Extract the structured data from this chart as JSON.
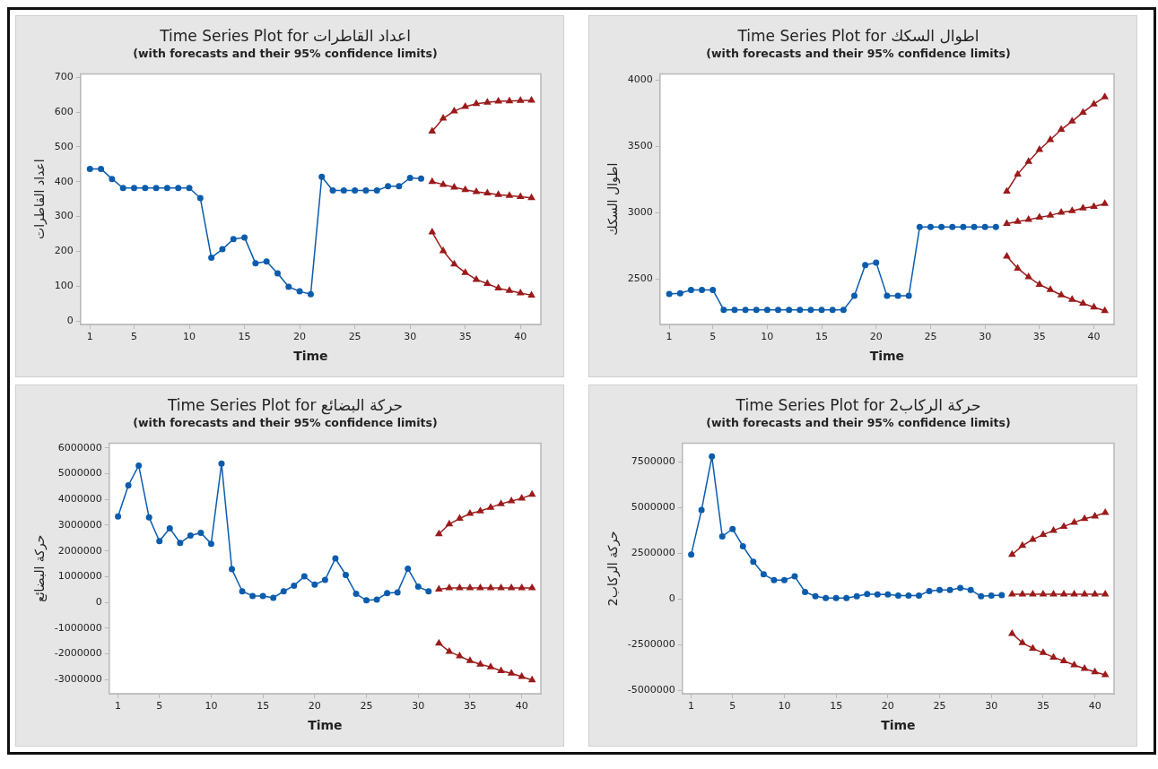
{
  "chart_data": [
    {
      "type": "line",
      "title": "Time Series Plot for اعداد القاطرات",
      "subtitle": "(with forecasts and their 95% confidence limits)",
      "xlabel": "Time",
      "ylabel": "اعداد القاطرات",
      "xlim": [
        0.15,
        41.85
      ],
      "xticks": [
        1,
        5,
        10,
        15,
        20,
        25,
        30,
        35,
        40
      ],
      "ylim": [
        -10,
        710
      ],
      "yticks": [
        0,
        100,
        200,
        300,
        400,
        500,
        600,
        700
      ],
      "grid": false,
      "legend": false,
      "series": [
        {
          "color": "#0b5cad",
          "marker": "circle",
          "x": [
            1,
            2,
            3,
            4,
            5,
            6,
            7,
            8,
            9,
            10,
            11,
            12,
            13,
            14,
            15,
            16,
            17,
            18,
            19,
            20,
            21,
            22,
            23,
            24,
            25,
            26,
            27,
            28,
            29,
            30,
            31
          ],
          "values": [
            437,
            437,
            408,
            382,
            382,
            382,
            382,
            382,
            382,
            382,
            353,
            182,
            206,
            235,
            240,
            166,
            171,
            137,
            98,
            85,
            77,
            414,
            375,
            375,
            375,
            375,
            375,
            387,
            387,
            411,
            409
          ]
        },
        {
          "color": "#9b1a1a",
          "marker": "triangle",
          "x": [
            32,
            33,
            34,
            35,
            36,
            37,
            38,
            39,
            40,
            41
          ],
          "values": [
            545,
            582,
            603,
            616,
            624,
            628,
            631,
            632,
            633,
            634
          ]
        },
        {
          "color": "#9b1a1a",
          "marker": "triangle",
          "x": [
            32,
            33,
            34,
            35,
            36,
            37,
            38,
            39,
            40,
            41
          ],
          "values": [
            400,
            392,
            384,
            377,
            371,
            367,
            363,
            360,
            357,
            354
          ]
        },
        {
          "color": "#9b1a1a",
          "marker": "triangle",
          "x": [
            32,
            33,
            34,
            35,
            36,
            37,
            38,
            39,
            40,
            41
          ],
          "values": [
            255,
            201,
            163,
            139,
            119,
            107,
            94,
            87,
            80,
            74
          ]
        }
      ]
    },
    {
      "type": "line",
      "title": "Time Series Plot for اطوال السكك",
      "subtitle": "(with forecasts and their 95% confidence limits)",
      "xlabel": "Time",
      "ylabel": "اطوال السكك",
      "xlim": [
        0.15,
        41.85
      ],
      "xticks": [
        1,
        5,
        10,
        15,
        20,
        25,
        30,
        35,
        40
      ],
      "ylim": [
        2160,
        4045
      ],
      "yticks": [
        2500,
        3000,
        3500,
        4000
      ],
      "grid": false,
      "legend": false,
      "series": [
        {
          "color": "#0b5cad",
          "marker": "circle",
          "x": [
            1,
            2,
            3,
            4,
            5,
            6,
            7,
            8,
            9,
            10,
            11,
            12,
            13,
            14,
            15,
            16,
            17,
            18,
            19,
            20,
            21,
            22,
            23,
            24,
            25,
            26,
            27,
            28,
            29,
            30,
            31
          ],
          "values": [
            2389,
            2395,
            2420,
            2420,
            2420,
            2270,
            2270,
            2270,
            2270,
            2270,
            2270,
            2270,
            2270,
            2270,
            2270,
            2270,
            2270,
            2375,
            2606,
            2626,
            2375,
            2375,
            2375,
            2894,
            2894,
            2894,
            2894,
            2894,
            2894,
            2894,
            2894
          ]
        },
        {
          "color": "#9b1a1a",
          "marker": "triangle",
          "x": [
            32,
            33,
            34,
            35,
            36,
            37,
            38,
            39,
            40,
            41
          ],
          "values": [
            3161,
            3290,
            3386,
            3475,
            3549,
            3626,
            3688,
            3755,
            3817,
            3871
          ]
        },
        {
          "color": "#9b1a1a",
          "marker": "triangle",
          "x": [
            32,
            33,
            34,
            35,
            36,
            37,
            38,
            39,
            40,
            41
          ],
          "values": [
            2918,
            2933,
            2948,
            2965,
            2980,
            3002,
            3015,
            3035,
            3047,
            3069
          ]
        },
        {
          "color": "#9b1a1a",
          "marker": "triangle",
          "x": [
            32,
            33,
            34,
            35,
            36,
            37,
            38,
            39,
            40,
            41
          ],
          "values": [
            2673,
            2582,
            2517,
            2460,
            2421,
            2381,
            2347,
            2319,
            2290,
            2263
          ]
        }
      ]
    },
    {
      "type": "line",
      "title": "Time Series Plot for حركة البضائع",
      "subtitle": "(with forecasts and their 95% confidence limits)",
      "xlabel": "Time",
      "ylabel": "حركة البضائع",
      "xlim": [
        0.15,
        41.85
      ],
      "xticks": [
        1,
        5,
        10,
        15,
        20,
        25,
        30,
        35,
        40
      ],
      "ylim": [
        -3550000,
        6190000
      ],
      "yticks": [
        -3000000,
        -2000000,
        -1000000,
        0,
        1000000,
        2000000,
        3000000,
        4000000,
        5000000,
        6000000
      ],
      "grid": false,
      "legend": false,
      "series": [
        {
          "color": "#0b5cad",
          "marker": "circle",
          "x": [
            1,
            2,
            3,
            4,
            5,
            6,
            7,
            8,
            9,
            10,
            11,
            12,
            13,
            14,
            15,
            16,
            17,
            18,
            19,
            20,
            21,
            22,
            23,
            24,
            25,
            26,
            27,
            28,
            29,
            30,
            31
          ],
          "values": [
            3340000,
            4550000,
            5320000,
            3300000,
            2380000,
            2880000,
            2310000,
            2600000,
            2700000,
            2280000,
            5390000,
            1290000,
            430000,
            250000,
            250000,
            180000,
            430000,
            650000,
            1010000,
            690000,
            870000,
            1710000,
            1070000,
            330000,
            80000,
            110000,
            360000,
            390000,
            1310000,
            610000,
            430000
          ]
        },
        {
          "color": "#9b1a1a",
          "marker": "triangle",
          "x": [
            32,
            33,
            34,
            35,
            36,
            37,
            38,
            39,
            40,
            41
          ],
          "values": [
            2660000,
            3040000,
            3260000,
            3450000,
            3550000,
            3690000,
            3830000,
            3940000,
            4040000,
            4190000
          ]
        },
        {
          "color": "#9b1a1a",
          "marker": "triangle",
          "x": [
            32,
            33,
            34,
            35,
            36,
            37,
            38,
            39,
            40,
            41
          ],
          "values": [
            510000,
            560000,
            560000,
            560000,
            560000,
            560000,
            560000,
            560000,
            560000,
            560000
          ]
        },
        {
          "color": "#9b1a1a",
          "marker": "triangle",
          "x": [
            32,
            33,
            34,
            35,
            36,
            37,
            38,
            39,
            40,
            41
          ],
          "values": [
            -1590000,
            -1910000,
            -2090000,
            -2270000,
            -2410000,
            -2510000,
            -2660000,
            -2760000,
            -2890000,
            -3020000
          ]
        }
      ]
    },
    {
      "type": "line",
      "title": "Time Series Plot for حركة الركاب2",
      "subtitle": "(with forecasts and their 95% confidence limits)",
      "xlabel": "Time",
      "ylabel": "حركة الركاب2",
      "xlim": [
        0.15,
        41.85
      ],
      "xticks": [
        1,
        5,
        10,
        15,
        20,
        25,
        30,
        35,
        40
      ],
      "ylim": [
        -5190000,
        8520000
      ],
      "yticks": [
        -5000000,
        -2500000,
        0,
        2500000,
        5000000,
        7500000
      ],
      "grid": false,
      "legend": false,
      "series": [
        {
          "color": "#0b5cad",
          "marker": "circle",
          "x": [
            1,
            2,
            3,
            4,
            5,
            6,
            7,
            8,
            9,
            10,
            11,
            12,
            13,
            14,
            15,
            16,
            17,
            18,
            19,
            20,
            21,
            22,
            23,
            24,
            25,
            26,
            27,
            28,
            29,
            30,
            31
          ],
          "values": [
            2420000,
            4860000,
            7790000,
            3420000,
            3820000,
            2880000,
            2030000,
            1340000,
            1030000,
            1030000,
            1230000,
            380000,
            140000,
            40000,
            40000,
            40000,
            140000,
            270000,
            240000,
            240000,
            180000,
            180000,
            180000,
            430000,
            490000,
            490000,
            600000,
            490000,
            140000,
            180000,
            200000
          ]
        },
        {
          "color": "#9b1a1a",
          "marker": "triangle",
          "x": [
            32,
            33,
            34,
            35,
            36,
            37,
            38,
            39,
            40,
            41
          ],
          "values": [
            2420000,
            2910000,
            3250000,
            3510000,
            3740000,
            3960000,
            4180000,
            4380000,
            4520000,
            4720000
          ]
        },
        {
          "color": "#9b1a1a",
          "marker": "triangle",
          "x": [
            32,
            33,
            34,
            35,
            36,
            37,
            38,
            39,
            40,
            41
          ],
          "values": [
            250000,
            250000,
            250000,
            250000,
            250000,
            250000,
            250000,
            250000,
            250000,
            250000
          ]
        },
        {
          "color": "#9b1a1a",
          "marker": "triangle",
          "x": [
            32,
            33,
            34,
            35,
            36,
            37,
            38,
            39,
            40,
            41
          ],
          "values": [
            -1900000,
            -2410000,
            -2710000,
            -2950000,
            -3200000,
            -3400000,
            -3620000,
            -3820000,
            -4000000,
            -4160000
          ]
        }
      ]
    }
  ]
}
